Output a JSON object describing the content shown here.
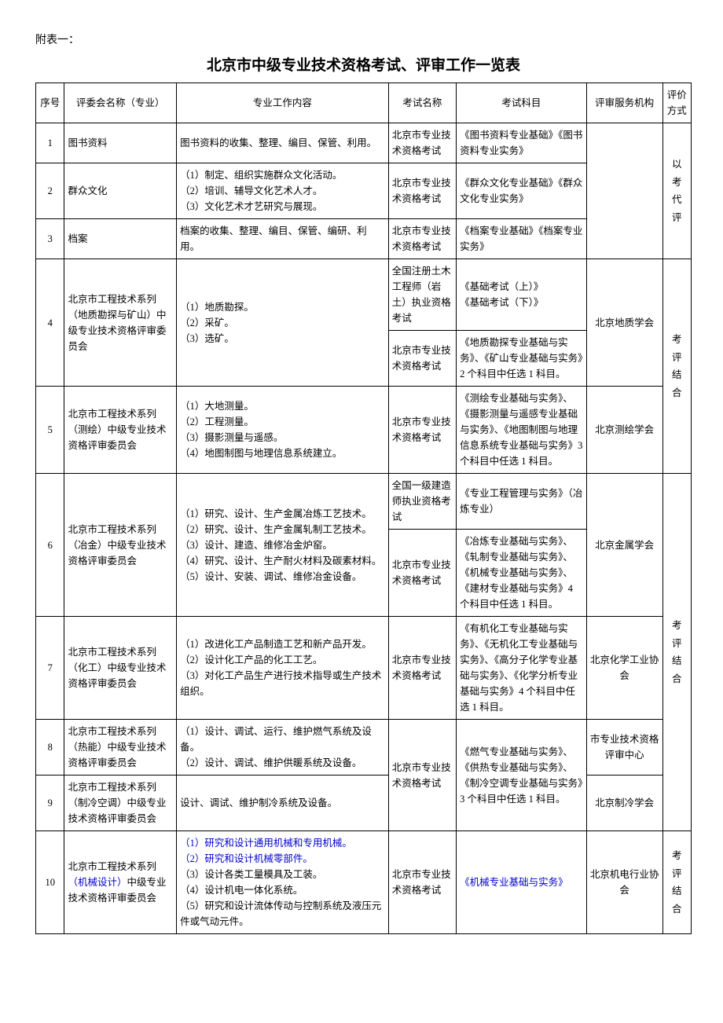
{
  "attachment_label": "附表一：",
  "title": "北京市中级专业技术资格考试、评审工作一览表",
  "headers": {
    "seq": "序号",
    "committee": "评委会名称（专业）",
    "work": "专业工作内容",
    "exam": "考试名称",
    "subject": "考试科目",
    "service": "评审服务机构",
    "eval": "评价方式"
  },
  "eval_mode_1": "以考代评",
  "eval_mode_2": "考评结合",
  "eval_mode_3": "考评结合",
  "eval_mode_4": "考评结合",
  "exam_names": {
    "beijing": "北京市专业技术资格考试",
    "geotech": "全国注册土木工程师（岩土）执业资格考试",
    "builder": "全国一级建造师执业资格考试"
  },
  "rows": {
    "r1": {
      "seq": "1",
      "committee": "图书资料",
      "work": "图书资料的收集、整理、编目、保管、利用。",
      "subject": "《图书资料专业基础》《图书资料专业实务》"
    },
    "r2": {
      "seq": "2",
      "committee": "群众文化",
      "work": "（1）制定、组织实施群众文化活动。\n（2）培训、辅导文化艺术人才。\n（3）文化艺术才艺研究与展现。",
      "subject": "《群众文化专业基础》《群众文化专业实务》"
    },
    "r3": {
      "seq": "3",
      "committee": "档案",
      "work": "档案的收集、整理、编目、保管、编研、利用。",
      "subject": "《档案专业基础》《档案专业实务》"
    },
    "r4": {
      "seq": "4",
      "committee": "北京市工程技术系列（地质勘探与矿山）中级专业技术资格评审委员会",
      "work": "（1）地质勘探。\n（2）采矿。\n（3）选矿。",
      "subject_a": "《基础考试（上）》\n《基础考试（下）》",
      "subject_b": "《地质勘探专业基础与实务》、《矿山专业基础与实务》2 个科目中任选 1 科目。",
      "service": "北京地质学会"
    },
    "r5": {
      "seq": "5",
      "committee": "北京市工程技术系列（测绘）中级专业技术资格评审委员会",
      "work": "（1）大地测量。\n（2）工程测量。\n（3）摄影测量与遥感。\n（4）地图制图与地理信息系统建立。",
      "subject": "《测绘专业基础与实务》、《摄影测量与遥感专业基础与实务》、《地图制图与地理信息系统专业基础与实务》3 个科目中任选 1 科目。",
      "service": "北京测绘学会"
    },
    "r6": {
      "seq": "6",
      "committee": "北京市工程技术系列（冶金）中级专业技术资格评审委员会",
      "work": "（1）研究、设计、生产金属冶炼工艺技术。\n（2）研究、设计、生产金属轧制工艺技术。\n（3）设计、建造、维修冶金炉窑。\n（4）研究、设计、生产耐火材料及碳素材料。\n（5）设计、安装、调试、维修冶金设备。",
      "subject_a": "《专业工程管理与实务》（冶炼专业）",
      "subject_b": "《冶炼专业基础与实务》、《轧制专业基础与实务》、《机械专业基础与实务》、《建材专业基础与实务》4 个科目中任选 1 科目。",
      "service": "北京金属学会"
    },
    "r7": {
      "seq": "7",
      "committee": "北京市工程技术系列（化工）中级专业技术资格评审委员会",
      "work": "（1）改进化工产品制造工艺和新产品开发。\n（2）设计化工产品的化工工艺。\n（3）对化工产品生产进行技术指导或生产技术组织。",
      "subject": "《有机化工专业基础与实务》、《无机化工专业基础与实务》、《高分子化学专业基础与实务》、《化学分析专业基础与实务》4 个科目中任选 1 科目。",
      "service": "北京化学工业协会"
    },
    "r8": {
      "seq": "8",
      "committee": "北京市工程技术系列（热能）中级专业技术资格评审委员会",
      "work": "（1）设计、调试、运行、维护燃气系统及设备。\n（2）设计、调试、维护供暖系统及设备。",
      "service": "市专业技术资格评审中心"
    },
    "r89_subject": "《燃气专业基础与实务》、《供热专业基础与实务》、《制冷空调专业基础与实务》3 个科目中任选 1 科目。",
    "r9": {
      "seq": "9",
      "committee": "北京市工程技术系列（制冷空调）中级专业技术资格评审委员会",
      "work": "设计、调试、维护制冷系统及设备。",
      "service": "北京制冷学会"
    },
    "r10": {
      "seq": "10",
      "committee_pre": "北京市工程技术系列",
      "committee_blue": "（机械设计）",
      "committee_post": "中级专业技术资格评审委员会",
      "work_blue": "（1）研究和设计通用机械和专用机械。\n（2）研究和设计机械零部件。",
      "work_rest": "（3）设计各类工量模具及工装。\n（4）设计机电一体化系统。\n（5）研究和设计流体传动与控制系统及液压元件或气动元件。",
      "subject": "《机械专业基础与实务》",
      "service": "北京机电行业协会"
    }
  }
}
